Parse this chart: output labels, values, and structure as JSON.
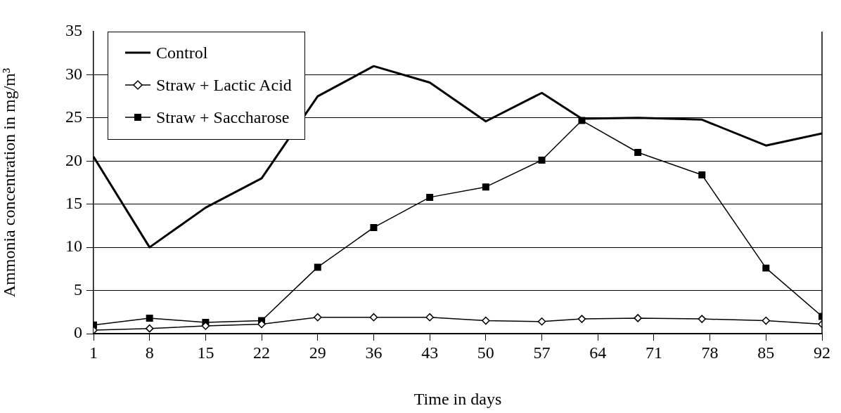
{
  "chart_data": {
    "type": "line",
    "xlabel": "Time in days",
    "ylabel": "Ammonia concentration in mg/m³",
    "x": [
      1,
      8,
      15,
      22,
      29,
      36,
      43,
      50,
      57,
      62,
      69,
      77,
      85,
      92
    ],
    "xlim": [
      1,
      92
    ],
    "xticks": [
      1,
      8,
      15,
      22,
      29,
      36,
      43,
      50,
      57,
      64,
      71,
      78,
      85,
      92
    ],
    "ylim": [
      0,
      35
    ],
    "yticks": [
      0,
      5,
      10,
      15,
      20,
      25,
      30,
      35
    ],
    "grid": "y",
    "legend": "top left",
    "series": [
      {
        "name": "Control",
        "color": "#000000",
        "marker": "none",
        "values": [
          20.5,
          10.0,
          14.6,
          18.0,
          27.5,
          31.0,
          29.1,
          24.6,
          27.9,
          24.9,
          25.0,
          24.8,
          21.8,
          23.2
        ]
      },
      {
        "name": "Straw + Lactic Acid",
        "color": "#000000",
        "marker": "diamond",
        "values": [
          0.4,
          0.6,
          0.9,
          1.1,
          1.9,
          1.9,
          1.9,
          1.5,
          1.4,
          1.7,
          1.8,
          1.7,
          1.5,
          1.1
        ]
      },
      {
        "name": "Straw + Saccharose",
        "color": "#000000",
        "marker": "square",
        "values": [
          1.0,
          1.8,
          1.3,
          1.5,
          7.7,
          12.3,
          15.8,
          17.0,
          20.1,
          24.7,
          21.0,
          18.4,
          7.6,
          2.0
        ]
      }
    ]
  }
}
